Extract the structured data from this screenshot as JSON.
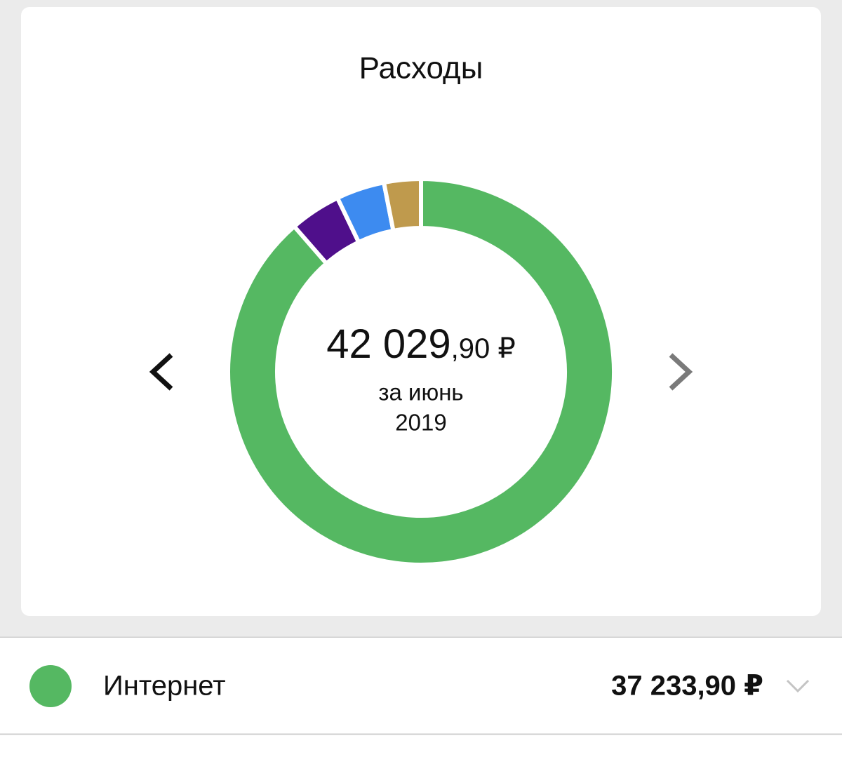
{
  "header": {
    "title": "Расходы"
  },
  "chart_data": {
    "type": "donut",
    "categories": [
      "Интернет",
      null,
      null,
      null
    ],
    "values": [
      37233.9,
      1800,
      1700,
      1296
    ],
    "colors": [
      "#55b862",
      "#4f0f8b",
      "#3d8bf0",
      "#bf9a4d"
    ],
    "center": {
      "amount": "42 029",
      "fraction": ",90 ₽",
      "period": "за июнь",
      "year": "2019"
    }
  },
  "list": {
    "rows": [
      {
        "label": "Интернет",
        "amount": "37 233,90 ₽",
        "color": "#55b862"
      }
    ]
  }
}
